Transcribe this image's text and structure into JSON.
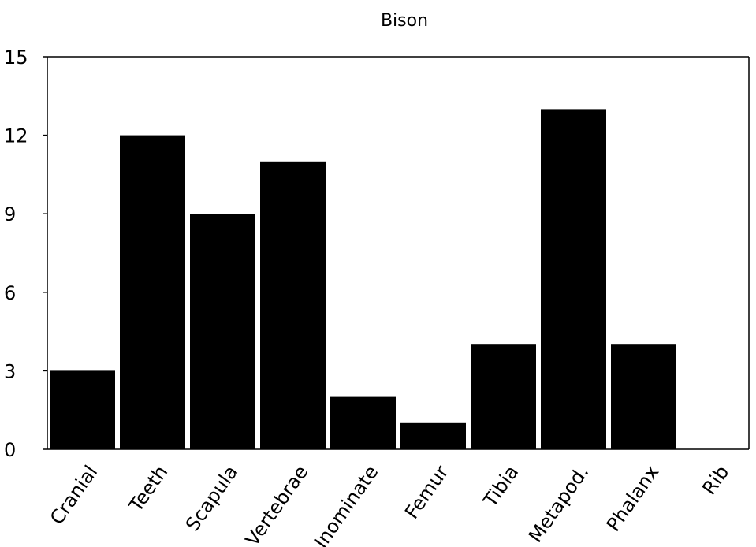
{
  "chart_data": {
    "type": "bar",
    "title": "Bison",
    "xlabel": "",
    "ylabel": "",
    "categories": [
      "Cranial",
      "Teeth",
      "Scapula",
      "Vertebrae",
      "Inominate",
      "Femur",
      "Tibia",
      "Metapod.",
      "Phalanx",
      "Rib"
    ],
    "values": [
      3,
      12,
      9,
      11,
      2,
      1,
      4,
      13,
      4,
      0
    ],
    "ylim": [
      0,
      15
    ],
    "yticks": [
      "0",
      "3",
      "6",
      "9",
      "12",
      "15"
    ],
    "grid": false,
    "legend": "none",
    "colors": {
      "bar": "#000000",
      "axis": "#000000",
      "background": "#ffffff"
    }
  }
}
